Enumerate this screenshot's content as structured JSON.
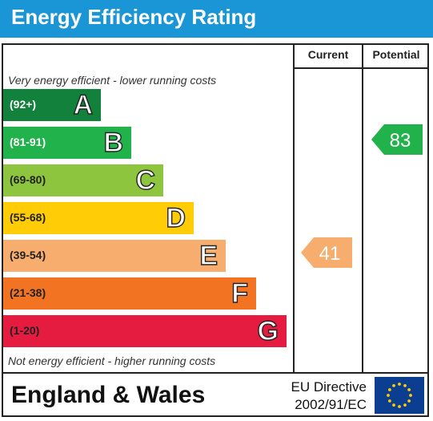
{
  "title": "Energy Efficiency Rating",
  "headers": {
    "current": "Current",
    "potential": "Potential"
  },
  "notes": {
    "top": "Very energy efficient - lower running costs",
    "bottom": "Not energy efficient - higher running costs"
  },
  "chart_data": {
    "type": "bar",
    "categories": [
      "A",
      "B",
      "C",
      "D",
      "E",
      "F",
      "G"
    ],
    "bands": [
      {
        "letter": "A",
        "range": "(92+)",
        "color": "#11813b",
        "text_color": "#ffffff"
      },
      {
        "letter": "B",
        "range": "(81-91)",
        "color": "#21b24b",
        "text_color": "#ffffff"
      },
      {
        "letter": "C",
        "range": "(69-80)",
        "color": "#8dc53f",
        "text_color": "#222222"
      },
      {
        "letter": "D",
        "range": "(55-68)",
        "color": "#ffcc05",
        "text_color": "#222222"
      },
      {
        "letter": "E",
        "range": "(39-54)",
        "color": "#f7ad6d",
        "text_color": "#222222"
      },
      {
        "letter": "F",
        "range": "(21-38)",
        "color": "#f27322",
        "text_color": "#222222"
      },
      {
        "letter": "G",
        "range": "(1-20)",
        "color": "#e51c40",
        "text_color": "#222222"
      }
    ],
    "current": {
      "value": 41,
      "band": "E",
      "color": "#f7ad6d"
    },
    "potential": {
      "value": 83,
      "band": "B",
      "color": "#21b24b"
    }
  },
  "footer": {
    "country": "England & Wales",
    "directive_line1": "EU Directive",
    "directive_line2": "2002/91/EC"
  }
}
